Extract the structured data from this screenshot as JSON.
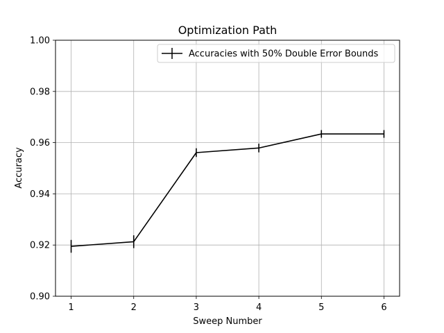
{
  "chart_data": {
    "type": "line",
    "title": "Optimization Path",
    "xlabel": "Sweep Number",
    "ylabel": "Accuracy",
    "x": [
      1,
      2,
      3,
      4,
      5,
      6
    ],
    "xticks": [
      "1",
      "2",
      "3",
      "4",
      "5",
      "6"
    ],
    "xlim": [
      0.75,
      6.25
    ],
    "ylim": [
      0.9,
      1.0
    ],
    "yticks": [
      "0.90",
      "0.92",
      "0.94",
      "0.96",
      "0.98",
      "1.00"
    ],
    "grid": true,
    "legend_position": "top-right",
    "series": [
      {
        "name": "Accuracies with 50% Double Error Bounds",
        "color": "#000000",
        "values": [
          0.9195,
          0.9213,
          0.9561,
          0.9579,
          0.9634,
          0.9634
        ],
        "errors": [
          0.0025,
          0.0025,
          0.0017,
          0.0017,
          0.0015,
          0.0015
        ]
      }
    ]
  }
}
